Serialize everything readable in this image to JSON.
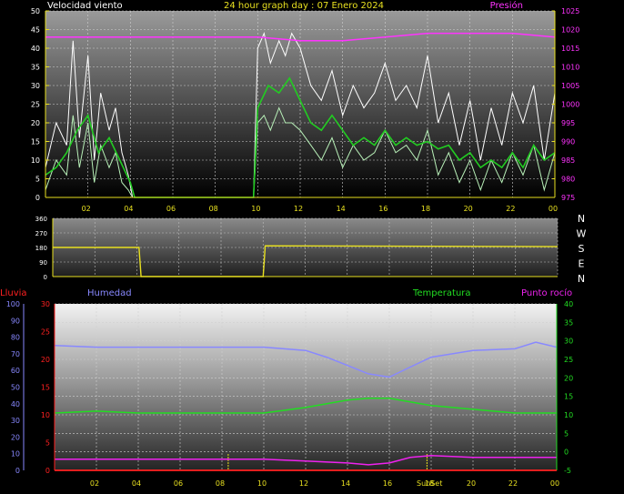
{
  "header": {
    "wind_label": "Velocidad viento",
    "title": "24 hour graph day : 07 Enero 2024",
    "pressure_label": "Presión"
  },
  "colors": {
    "wind_gust": "#ffffff",
    "wind_speed": "#b8f0b8",
    "wind_avg": "#22cc22",
    "pressure": "#ff33ff",
    "direction": "#e8e020",
    "humidity": "#8888ff",
    "temperature": "#22dd22",
    "dewpoint": "#ee22ee",
    "rain": "#ff2020",
    "axis_yellow": "#e8e020",
    "lluvia_label": "#ff2020",
    "humedad_label": "#8888ff",
    "temp_label": "#22dd22",
    "punto_label": "#ee22ee"
  },
  "direction_labels": [
    "N",
    "W",
    "S",
    "E",
    "N"
  ],
  "bottom_labels": {
    "lluvia": "Lluvia",
    "humedad": "Humedad",
    "temperatura": "Temperatura",
    "punto_rocio": "Punto rocío",
    "sunrise_sunset": "SunSet"
  },
  "chart_data": [
    {
      "type": "line",
      "name": "wind",
      "x_ticks": [
        "02",
        "04",
        "06",
        "08",
        "10",
        "12",
        "14",
        "16",
        "18",
        "20",
        "22",
        "00"
      ],
      "y_left_ticks": [
        "0",
        "5",
        "10",
        "15",
        "20",
        "25",
        "30",
        "35",
        "40",
        "45",
        "50"
      ],
      "y_right_ticks": [
        "975",
        "980",
        "985",
        "990",
        "995",
        "1000",
        "1005",
        "1010",
        "1015",
        "1020",
        "1025"
      ],
      "ylim_left": [
        0,
        50
      ],
      "ylim_right": [
        975,
        1025
      ],
      "series": [
        {
          "name": "gust",
          "x_hours": [
            0,
            0.5,
            1,
            1.3,
            1.6,
            2,
            2.3,
            2.6,
            3,
            3.3,
            3.6,
            3.9,
            4.1,
            9.8,
            10,
            10.3,
            10.6,
            11,
            11.3,
            11.6,
            12,
            12.5,
            13,
            13.5,
            14,
            14.5,
            15,
            15.5,
            16,
            16.5,
            17,
            17.5,
            18,
            18.5,
            19,
            19.5,
            20,
            20.5,
            21,
            21.5,
            22,
            22.5,
            23,
            23.5,
            24
          ],
          "values": [
            8,
            20,
            14,
            42,
            16,
            38,
            10,
            28,
            18,
            24,
            12,
            6,
            0,
            0,
            40,
            44,
            36,
            42,
            38,
            44,
            40,
            30,
            26,
            34,
            22,
            30,
            24,
            28,
            36,
            26,
            30,
            24,
            38,
            20,
            28,
            14,
            26,
            10,
            24,
            14,
            28,
            20,
            30,
            10,
            28
          ]
        },
        {
          "name": "speed",
          "x_hours": [
            0,
            0.5,
            1,
            1.3,
            1.6,
            2,
            2.3,
            2.6,
            3,
            3.3,
            3.6,
            3.9,
            4.1,
            9.8,
            10,
            10.3,
            10.6,
            11,
            11.3,
            11.6,
            12,
            12.5,
            13,
            13.5,
            14,
            14.5,
            15,
            15.5,
            16,
            16.5,
            17,
            17.5,
            18,
            18.5,
            19,
            19.5,
            20,
            20.5,
            21,
            21.5,
            22,
            22.5,
            23,
            23.5,
            24
          ],
          "values": [
            2,
            10,
            6,
            22,
            8,
            20,
            4,
            14,
            8,
            12,
            4,
            2,
            0,
            0,
            20,
            22,
            18,
            24,
            20,
            20,
            18,
            14,
            10,
            16,
            8,
            14,
            10,
            12,
            18,
            12,
            14,
            10,
            18,
            6,
            12,
            4,
            10,
            2,
            10,
            4,
            12,
            6,
            14,
            2,
            12
          ]
        },
        {
          "name": "average",
          "x_hours": [
            0,
            0.5,
            1,
            1.5,
            2,
            2.5,
            3,
            3.5,
            4,
            4.2,
            9.8,
            10,
            10.5,
            11,
            11.5,
            12,
            12.5,
            13,
            13.5,
            14,
            14.5,
            15,
            15.5,
            16,
            16.5,
            17,
            17.5,
            18,
            18.5,
            19,
            19.5,
            20,
            20.5,
            21,
            21.5,
            22,
            22.5,
            23,
            23.5,
            24
          ],
          "values": [
            6,
            8,
            12,
            18,
            22,
            12,
            16,
            10,
            4,
            0,
            0,
            24,
            30,
            28,
            32,
            26,
            20,
            18,
            22,
            18,
            14,
            16,
            14,
            18,
            14,
            16,
            14,
            15,
            13,
            14,
            10,
            12,
            8,
            10,
            8,
            12,
            8,
            14,
            10,
            12
          ]
        },
        {
          "name": "pressure",
          "x_hours": [
            0,
            2,
            4,
            6,
            8,
            10,
            12,
            14,
            16,
            18,
            20,
            22,
            24
          ],
          "values": [
            1018,
            1018,
            1018,
            1018,
            1018,
            1018,
            1017,
            1017,
            1018,
            1019,
            1019,
            1019,
            1018
          ]
        }
      ]
    },
    {
      "type": "line",
      "name": "direction",
      "y_ticks": [
        "0",
        "90",
        "180",
        "270",
        "360"
      ],
      "ylim": [
        0,
        360
      ],
      "series": [
        {
          "name": "direction",
          "x_hours": [
            0,
            4.1,
            4.2,
            10.0,
            10.1,
            24
          ],
          "values": [
            180,
            180,
            0,
            0,
            190,
            185
          ]
        }
      ]
    },
    {
      "type": "line",
      "name": "climate",
      "x_ticks": [
        "02",
        "04",
        "06",
        "08",
        "10",
        "12",
        "14",
        "16",
        "18",
        "20",
        "22",
        "00"
      ],
      "y_hum_ticks": [
        "0",
        "10",
        "20",
        "30",
        "40",
        "50",
        "60",
        "70",
        "80",
        "90",
        "100"
      ],
      "y_rain_ticks": [
        "0",
        "5",
        "10",
        "15",
        "20",
        "25",
        "30"
      ],
      "y_temp_ticks": [
        "-5",
        "0",
        "5",
        "10",
        "15",
        "20",
        "25",
        "30",
        "35",
        "40"
      ],
      "ylim_humidity": [
        0,
        100
      ],
      "ylim_rain": [
        0,
        30
      ],
      "ylim_temp": [
        -5,
        40
      ],
      "series": [
        {
          "name": "humidity",
          "x_hours": [
            0,
            2,
            4,
            6,
            8,
            10,
            12,
            13,
            14,
            15,
            16,
            17,
            18,
            20,
            22,
            23,
            24
          ],
          "values": [
            75,
            74,
            74,
            74,
            74,
            74,
            72,
            68,
            63,
            58,
            56,
            62,
            68,
            72,
            73,
            77,
            74
          ]
        },
        {
          "name": "temperature",
          "x_hours": [
            0,
            2,
            4,
            6,
            8,
            10,
            12,
            14,
            15,
            16,
            17,
            18,
            20,
            22,
            24
          ],
          "values": [
            10.5,
            11,
            10.5,
            10.5,
            10.5,
            10.5,
            12,
            14,
            14.5,
            14.5,
            13.5,
            12.5,
            11.5,
            10.5,
            10.5
          ]
        },
        {
          "name": "dewpoint",
          "x_hours": [
            0,
            2,
            4,
            6,
            8,
            10,
            12,
            14,
            15,
            16,
            17,
            18,
            20,
            22,
            24
          ],
          "values": [
            -2,
            -2,
            -2,
            -2,
            -2,
            -2,
            -2.5,
            -3,
            -3.5,
            -3,
            -1.5,
            -1,
            -1.5,
            -1.5,
            -1.5
          ]
        },
        {
          "name": "rain",
          "x_hours": [
            0,
            24
          ],
          "values": [
            0,
            0
          ]
        }
      ],
      "markers_hours": [
        8.3,
        17.8
      ]
    }
  ]
}
